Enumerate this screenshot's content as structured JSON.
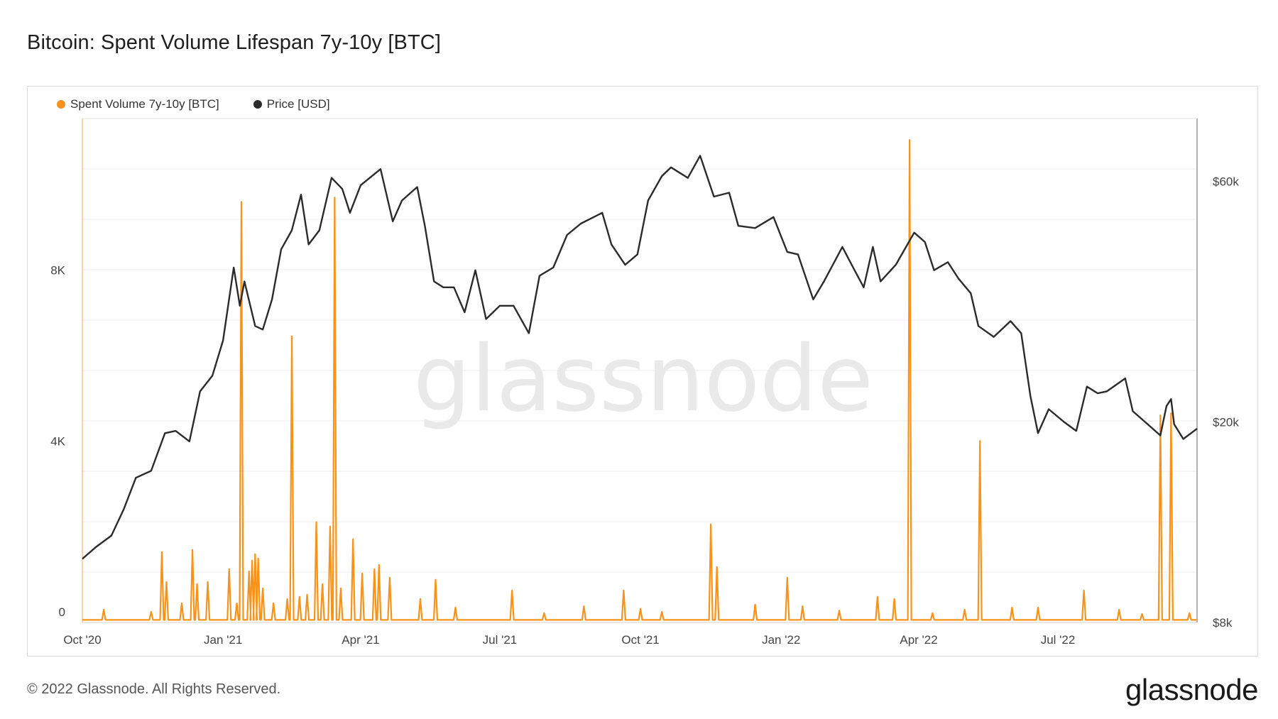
{
  "title": "Bitcoin: Spent Volume Lifespan 7y-10y [BTC]",
  "footer": {
    "copyright": "© 2022 Glassnode. All Rights Reserved.",
    "logo_text": "glassnode"
  },
  "watermark": "glassnode",
  "colors": {
    "volume": "#f7931a",
    "price": "#2b2b2b",
    "grid": "#ececec"
  },
  "chart_data": {
    "type": "line",
    "title": "Bitcoin: Spent Volume Lifespan 7y-10y [BTC]",
    "legend_placement": "top-left",
    "grid": true,
    "x_range": [
      "2020-10-01",
      "2022-09-30"
    ],
    "x_ticks": [
      {
        "date": "2020-10-01",
        "label": "Oct '20"
      },
      {
        "date": "2021-01-01",
        "label": "Jan '21"
      },
      {
        "date": "2021-04-01",
        "label": "Apr '21"
      },
      {
        "date": "2021-07-01",
        "label": "Jul '21"
      },
      {
        "date": "2021-10-01",
        "label": "Oct '21"
      },
      {
        "date": "2022-01-01",
        "label": "Jan '22"
      },
      {
        "date": "2022-04-01",
        "label": "Apr '22"
      },
      {
        "date": "2022-07-01",
        "label": "Jul '22"
      }
    ],
    "y_left": {
      "range": [
        0,
        11800
      ],
      "ticks": [
        {
          "value": 0,
          "label": "0"
        },
        {
          "value": 4000,
          "label": "4K"
        },
        {
          "value": 8000,
          "label": "8K"
        }
      ]
    },
    "y_right": {
      "scale": "log",
      "range": [
        8000,
        80000
      ],
      "ticks": [
        {
          "value": 8000,
          "label": "$8k"
        },
        {
          "value": 20000,
          "label": "$20k"
        },
        {
          "value": 60000,
          "label": "$60k"
        }
      ]
    },
    "series": [
      {
        "name": "Spent Volume 7y-10y [BTC]",
        "axis": "left",
        "style": "spikes",
        "baseline": 60,
        "points": [
          [
            "2020-10-15",
            300
          ],
          [
            "2020-11-15",
            250
          ],
          [
            "2020-11-22",
            1650
          ],
          [
            "2020-11-25",
            950
          ],
          [
            "2020-12-05",
            450
          ],
          [
            "2020-12-12",
            1700
          ],
          [
            "2020-12-15",
            900
          ],
          [
            "2020-12-22",
            950
          ],
          [
            "2021-01-05",
            1250
          ],
          [
            "2021-01-10",
            450
          ],
          [
            "2021-01-13",
            9850
          ],
          [
            "2021-01-18",
            1200
          ],
          [
            "2021-01-20",
            1450
          ],
          [
            "2021-01-22",
            1600
          ],
          [
            "2021-01-24",
            1500
          ],
          [
            "2021-01-27",
            800
          ],
          [
            "2021-02-03",
            450
          ],
          [
            "2021-02-12",
            550
          ],
          [
            "2021-02-15",
            6700
          ],
          [
            "2021-02-20",
            600
          ],
          [
            "2021-02-25",
            650
          ],
          [
            "2021-03-03",
            2350
          ],
          [
            "2021-03-07",
            900
          ],
          [
            "2021-03-12",
            2250
          ],
          [
            "2021-03-15",
            9950
          ],
          [
            "2021-03-19",
            800
          ],
          [
            "2021-03-27",
            1950
          ],
          [
            "2021-04-02",
            1150
          ],
          [
            "2021-04-10",
            1250
          ],
          [
            "2021-04-13",
            1350
          ],
          [
            "2021-04-20",
            1050
          ],
          [
            "2021-05-10",
            550
          ],
          [
            "2021-05-20",
            1000
          ],
          [
            "2021-06-02",
            350
          ],
          [
            "2021-07-09",
            750
          ],
          [
            "2021-07-30",
            220
          ],
          [
            "2021-08-25",
            380
          ],
          [
            "2021-09-20",
            750
          ],
          [
            "2021-10-01",
            320
          ],
          [
            "2021-10-15",
            250
          ],
          [
            "2021-11-16",
            2300
          ],
          [
            "2021-11-20",
            1300
          ],
          [
            "2021-12-15",
            420
          ],
          [
            "2022-01-05",
            1050
          ],
          [
            "2022-01-15",
            380
          ],
          [
            "2022-02-08",
            280
          ],
          [
            "2022-03-05",
            600
          ],
          [
            "2022-03-16",
            550
          ],
          [
            "2022-03-26",
            11300
          ],
          [
            "2022-04-10",
            220
          ],
          [
            "2022-05-01",
            300
          ],
          [
            "2022-05-11",
            4250
          ],
          [
            "2022-06-01",
            350
          ],
          [
            "2022-06-18",
            350
          ],
          [
            "2022-07-18",
            750
          ],
          [
            "2022-08-10",
            300
          ],
          [
            "2022-08-25",
            200
          ],
          [
            "2022-09-06",
            4850
          ],
          [
            "2022-09-13",
            4900
          ],
          [
            "2022-09-25",
            220
          ]
        ]
      },
      {
        "name": "Price [USD]",
        "axis": "right",
        "style": "line",
        "points": [
          [
            "2020-10-01",
            10700
          ],
          [
            "2020-10-10",
            11300
          ],
          [
            "2020-10-20",
            11900
          ],
          [
            "2020-10-28",
            13400
          ],
          [
            "2020-11-05",
            15500
          ],
          [
            "2020-11-15",
            16000
          ],
          [
            "2020-11-24",
            19000
          ],
          [
            "2020-12-01",
            19200
          ],
          [
            "2020-12-10",
            18300
          ],
          [
            "2020-12-17",
            23000
          ],
          [
            "2020-12-25",
            24700
          ],
          [
            "2021-01-01",
            29000
          ],
          [
            "2021-01-08",
            40500
          ],
          [
            "2021-01-12",
            34000
          ],
          [
            "2021-01-15",
            38000
          ],
          [
            "2021-01-22",
            31000
          ],
          [
            "2021-01-27",
            30500
          ],
          [
            "2021-02-02",
            35000
          ],
          [
            "2021-02-08",
            44000
          ],
          [
            "2021-02-15",
            48000
          ],
          [
            "2021-02-21",
            56500
          ],
          [
            "2021-02-26",
            45000
          ],
          [
            "2021-03-05",
            48000
          ],
          [
            "2021-03-13",
            61000
          ],
          [
            "2021-03-20",
            58000
          ],
          [
            "2021-03-25",
            52000
          ],
          [
            "2021-04-01",
            59000
          ],
          [
            "2021-04-14",
            63500
          ],
          [
            "2021-04-22",
            50000
          ],
          [
            "2021-04-28",
            55000
          ],
          [
            "2021-05-08",
            58500
          ],
          [
            "2021-05-13",
            49000
          ],
          [
            "2021-05-19",
            38000
          ],
          [
            "2021-05-25",
            37000
          ],
          [
            "2021-06-01",
            37000
          ],
          [
            "2021-06-08",
            33000
          ],
          [
            "2021-06-15",
            40000
          ],
          [
            "2021-06-22",
            32000
          ],
          [
            "2021-07-01",
            34000
          ],
          [
            "2021-07-10",
            34000
          ],
          [
            "2021-07-20",
            30000
          ],
          [
            "2021-07-27",
            39000
          ],
          [
            "2021-08-05",
            40500
          ],
          [
            "2021-08-14",
            47000
          ],
          [
            "2021-08-23",
            49500
          ],
          [
            "2021-09-06",
            52000
          ],
          [
            "2021-09-12",
            45000
          ],
          [
            "2021-09-21",
            41000
          ],
          [
            "2021-09-29",
            43000
          ],
          [
            "2021-10-06",
            55000
          ],
          [
            "2021-10-15",
            61500
          ],
          [
            "2021-10-21",
            64000
          ],
          [
            "2021-11-01",
            61000
          ],
          [
            "2021-11-09",
            67500
          ],
          [
            "2021-11-18",
            56000
          ],
          [
            "2021-11-28",
            57000
          ],
          [
            "2021-12-04",
            49000
          ],
          [
            "2021-12-15",
            48500
          ],
          [
            "2021-12-27",
            51000
          ],
          [
            "2022-01-05",
            43500
          ],
          [
            "2022-01-12",
            43000
          ],
          [
            "2022-01-22",
            35000
          ],
          [
            "2022-01-29",
            38000
          ],
          [
            "2022-02-10",
            44500
          ],
          [
            "2022-02-18",
            40000
          ],
          [
            "2022-02-24",
            37000
          ],
          [
            "2022-03-02",
            44500
          ],
          [
            "2022-03-07",
            38000
          ],
          [
            "2022-03-17",
            41000
          ],
          [
            "2022-03-29",
            47500
          ],
          [
            "2022-04-05",
            45500
          ],
          [
            "2022-04-11",
            40000
          ],
          [
            "2022-04-20",
            41500
          ],
          [
            "2022-04-27",
            38500
          ],
          [
            "2022-05-05",
            36000
          ],
          [
            "2022-05-10",
            31000
          ],
          [
            "2022-05-20",
            29500
          ],
          [
            "2022-05-31",
            31700
          ],
          [
            "2022-06-07",
            30000
          ],
          [
            "2022-06-13",
            22500
          ],
          [
            "2022-06-18",
            19000
          ],
          [
            "2022-06-25",
            21200
          ],
          [
            "2022-07-05",
            20000
          ],
          [
            "2022-07-13",
            19200
          ],
          [
            "2022-07-20",
            23500
          ],
          [
            "2022-07-27",
            22800
          ],
          [
            "2022-08-02",
            23000
          ],
          [
            "2022-08-14",
            24400
          ],
          [
            "2022-08-19",
            21000
          ],
          [
            "2022-08-27",
            20000
          ],
          [
            "2022-09-06",
            18800
          ],
          [
            "2022-09-10",
            21500
          ],
          [
            "2022-09-13",
            22200
          ],
          [
            "2022-09-15",
            19800
          ],
          [
            "2022-09-21",
            18500
          ],
          [
            "2022-09-30",
            19400
          ]
        ]
      }
    ]
  }
}
